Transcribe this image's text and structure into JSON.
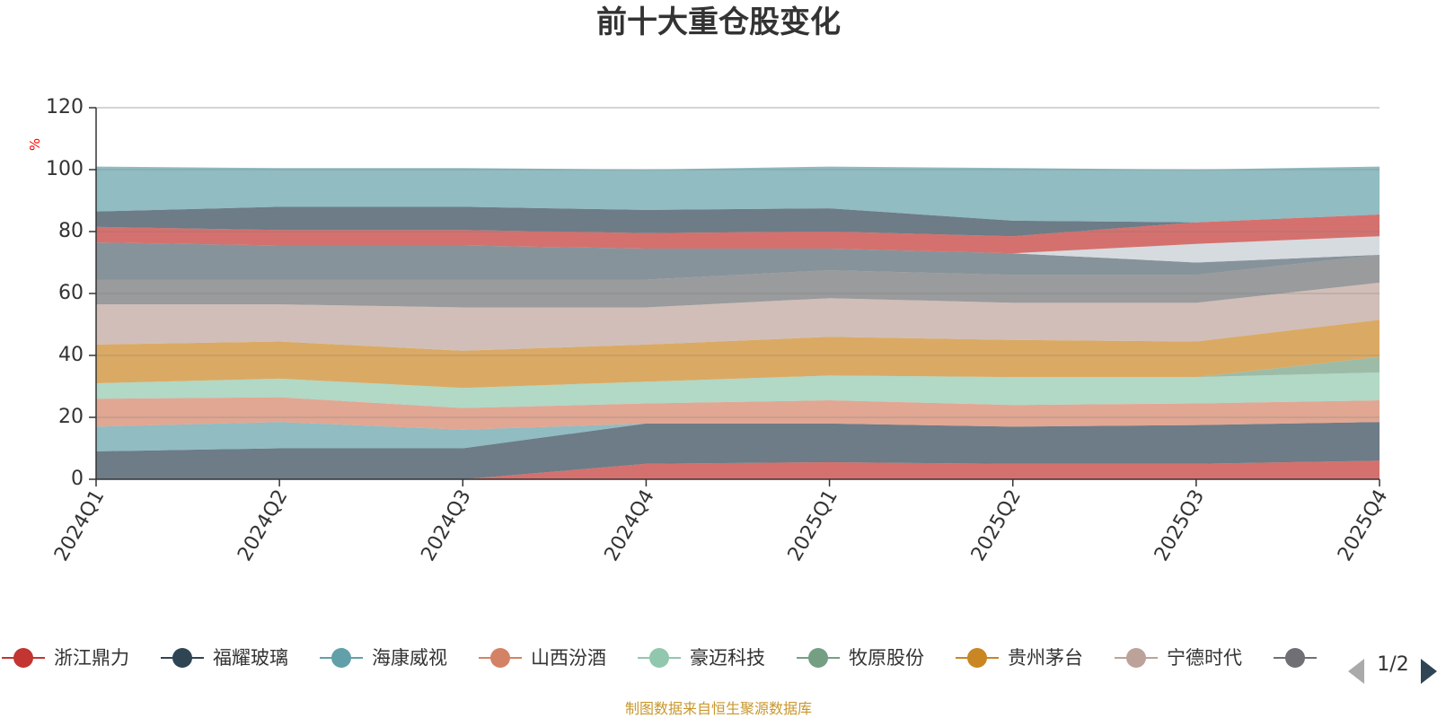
{
  "chart_data": {
    "type": "area",
    "stacked": true,
    "stack_mode": "percent",
    "title": "前十大重仓股变化",
    "unit": "%",
    "categories": [
      "2024Q1",
      "2024Q2",
      "2024Q3",
      "2024Q4",
      "2025Q1",
      "2025Q2",
      "2025Q3",
      "2025Q4"
    ],
    "ylim": [
      0,
      120
    ],
    "yticks": [
      0,
      20,
      40,
      60,
      80,
      100,
      120
    ],
    "grid": true,
    "legend_position": "bottom",
    "series": [
      {
        "name": "浙江鼎力",
        "color": "#c23531",
        "values": [
          0,
          0,
          0,
          5,
          5.5,
          5,
          5,
          6
        ]
      },
      {
        "name": "福耀玻璃",
        "color": "#2f4554",
        "values": [
          9,
          10,
          10,
          13,
          12.5,
          12,
          12.5,
          12.5
        ]
      },
      {
        "name": "海康威视",
        "color": "#61a0a8",
        "values": [
          8,
          8.5,
          6,
          0,
          0,
          0,
          0,
          0
        ]
      },
      {
        "name": "山西汾酒",
        "color": "#d48265",
        "values": [
          9,
          8,
          7,
          6.5,
          7.5,
          7,
          7,
          7
        ]
      },
      {
        "name": "豪迈科技",
        "color": "#91c7ae",
        "values": [
          5,
          6,
          6.5,
          7,
          8,
          9,
          8.5,
          9
        ]
      },
      {
        "name": "牧原股份",
        "color": "#749f83",
        "values": [
          0,
          0,
          0,
          0,
          0,
          0,
          0,
          5
        ]
      },
      {
        "name": "贵州茅台",
        "color": "#ca8622",
        "values": [
          12.5,
          12,
          12,
          12,
          12.5,
          12,
          11.5,
          12
        ]
      },
      {
        "name": "宁德时代",
        "color": "#bda29a",
        "values": [
          13,
          12,
          14,
          12,
          12.5,
          12,
          12.5,
          12
        ]
      },
      {
        "name": "",
        "color": "#6e7074",
        "values": [
          8,
          8,
          9,
          9,
          9,
          9,
          9,
          9
        ]
      },
      {
        "name": "",
        "color": "#546570",
        "values": [
          12,
          11,
          11,
          10,
          7,
          7,
          4,
          0
        ]
      },
      {
        "name": "",
        "color": "#c4ccd3",
        "values": [
          0,
          0,
          0,
          0,
          0,
          0,
          6,
          6
        ]
      },
      {
        "name": "",
        "color": "#c23531",
        "values": [
          5,
          5,
          5,
          5,
          5.5,
          5.5,
          7,
          7
        ]
      },
      {
        "name": "",
        "color": "#2f4554",
        "values": [
          5,
          7.5,
          7.5,
          7.5,
          7.5,
          5,
          0,
          0
        ]
      },
      {
        "name": "",
        "color": "#61a0a8",
        "values": [
          14.5,
          12.5,
          12.5,
          13,
          13.5,
          17,
          17,
          15.5
        ]
      }
    ]
  },
  "legend": {
    "items": [
      {
        "label": "浙江鼎力",
        "color": "#c23531"
      },
      {
        "label": "福耀玻璃",
        "color": "#2f4554"
      },
      {
        "label": "海康威视",
        "color": "#61a0a8"
      },
      {
        "label": "山西汾酒",
        "color": "#d48265"
      },
      {
        "label": "豪迈科技",
        "color": "#91c7ae"
      },
      {
        "label": "牧原股份",
        "color": "#749f83"
      },
      {
        "label": "贵州茅台",
        "color": "#ca8622"
      },
      {
        "label": "宁德时代",
        "color": "#bda29a"
      },
      {
        "label": "",
        "color": "#6e7074"
      }
    ],
    "pager_text": "1/2",
    "prev_icon": "triangle-left-icon",
    "next_icon": "triangle-right-icon",
    "prev_color": "#aaaaaa",
    "next_color": "#2f4554"
  },
  "footer": {
    "source_text": "制图数据来自恒生聚源数据库"
  }
}
